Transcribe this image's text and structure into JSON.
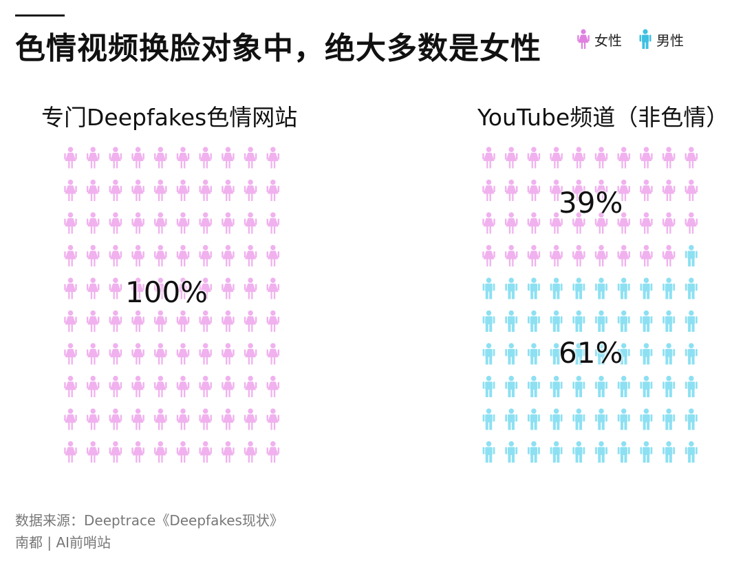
{
  "header": {
    "title": "色情视频换脸对象中，绝大多数是女性"
  },
  "legend": [
    {
      "label": "女性",
      "icon": "female-person-icon",
      "color": "#f0b1ee"
    },
    {
      "label": "男性",
      "icon": "male-person-icon",
      "color": "#8de0f2"
    }
  ],
  "panels": {
    "left_title": "专门Deepfakes色情网站",
    "right_title": "YouTube频道（非色情）",
    "left_pct": "100%",
    "right_female_pct": "39%",
    "right_male_pct": "61%"
  },
  "colors": {
    "female": "#f0b1ee",
    "male": "#8de0f2"
  },
  "chart_data": [
    {
      "type": "pictogram",
      "title": "专门Deepfakes色情网站",
      "total_icons": 100,
      "series": [
        {
          "name": "女性",
          "value": 100,
          "unit": "%"
        },
        {
          "name": "男性",
          "value": 0,
          "unit": "%"
        }
      ]
    },
    {
      "type": "pictogram",
      "title": "YouTube频道（非色情）",
      "total_icons": 100,
      "series": [
        {
          "name": "女性",
          "value": 39,
          "unit": "%"
        },
        {
          "name": "男性",
          "value": 61,
          "unit": "%"
        }
      ]
    }
  ],
  "footer": {
    "source": "数据来源：Deeptrace《Deepfakes现状》",
    "credit": "南都 | AI前哨站"
  }
}
